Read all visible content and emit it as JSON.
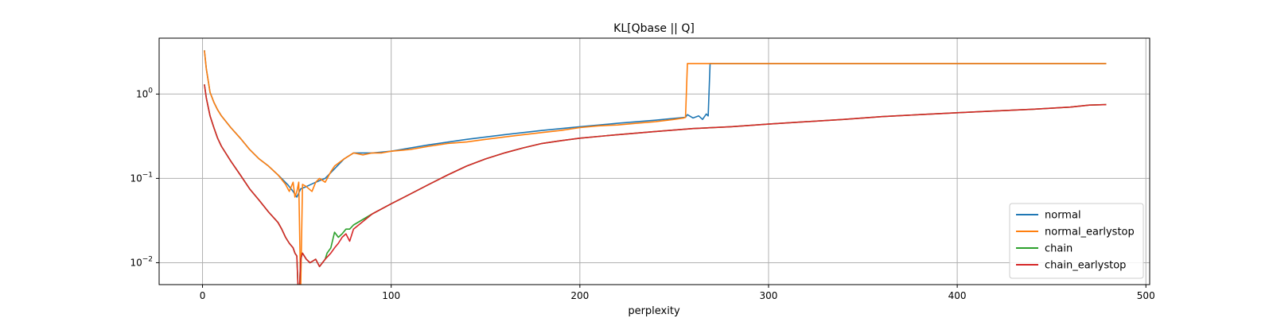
{
  "chart_data": {
    "type": "line",
    "title": "KL[Qbase || Q]",
    "xlabel": "perplexity",
    "ylabel": "",
    "xlim": [
      -23,
      502
    ],
    "ylim": [
      0.0055,
      4.6
    ],
    "yscale": "log",
    "grid": true,
    "legend_position": "lower-right",
    "x_ticks": [
      {
        "value": 0,
        "label": "0"
      },
      {
        "value": 100,
        "label": "100"
      },
      {
        "value": 200,
        "label": "200"
      },
      {
        "value": 300,
        "label": "300"
      },
      {
        "value": 400,
        "label": "400"
      },
      {
        "value": 500,
        "label": "500"
      }
    ],
    "y_ticks": [
      {
        "value": 0.01,
        "base": "10",
        "exp": "−2"
      },
      {
        "value": 0.1,
        "base": "10",
        "exp": "−1"
      },
      {
        "value": 1,
        "base": "10",
        "exp": "0"
      }
    ],
    "series": [
      {
        "name": "normal",
        "color": "#1f77b4",
        "x": [
          1,
          2,
          4,
          6,
          8,
          10,
          15,
          20,
          25,
          30,
          35,
          40,
          45,
          48,
          50,
          52,
          55,
          60,
          65,
          70,
          75,
          80,
          90,
          100,
          120,
          140,
          160,
          180,
          200,
          220,
          240,
          256,
          257,
          260,
          263,
          265,
          267,
          268,
          269,
          270,
          300,
          350,
          400,
          450,
          479
        ],
        "y": [
          3.3,
          2.0,
          1.05,
          0.8,
          0.65,
          0.55,
          0.4,
          0.3,
          0.22,
          0.17,
          0.14,
          0.11,
          0.085,
          0.07,
          0.06,
          0.075,
          0.08,
          0.09,
          0.1,
          0.13,
          0.17,
          0.2,
          0.2,
          0.21,
          0.25,
          0.29,
          0.33,
          0.37,
          0.41,
          0.45,
          0.49,
          0.53,
          0.57,
          0.52,
          0.55,
          0.5,
          0.58,
          0.55,
          2.3,
          2.3,
          2.3,
          2.3,
          2.3,
          2.3,
          2.3
        ]
      },
      {
        "name": "normal_earlystop",
        "color": "#ff7f0e",
        "x": [
          1,
          2,
          4,
          6,
          8,
          10,
          15,
          20,
          25,
          30,
          35,
          40,
          44,
          46,
          48,
          49,
          50,
          51,
          52,
          53,
          55,
          58,
          60,
          62,
          65,
          68,
          70,
          75,
          80,
          85,
          90,
          95,
          100,
          110,
          120,
          130,
          140,
          150,
          160,
          170,
          180,
          190,
          200,
          210,
          220,
          230,
          240,
          250,
          255,
          256,
          257,
          260,
          300,
          350,
          400,
          450,
          479
        ],
        "y": [
          3.3,
          2.0,
          1.05,
          0.8,
          0.65,
          0.55,
          0.4,
          0.3,
          0.22,
          0.17,
          0.14,
          0.11,
          0.085,
          0.07,
          0.09,
          0.06,
          0.07,
          0.09,
          0.0045,
          0.085,
          0.08,
          0.07,
          0.09,
          0.1,
          0.09,
          0.12,
          0.14,
          0.17,
          0.2,
          0.19,
          0.2,
          0.2,
          0.21,
          0.22,
          0.24,
          0.26,
          0.27,
          0.29,
          0.31,
          0.33,
          0.35,
          0.37,
          0.4,
          0.42,
          0.43,
          0.45,
          0.47,
          0.5,
          0.52,
          0.53,
          2.3,
          2.3,
          2.3,
          2.3,
          2.3,
          2.3,
          2.3
        ]
      },
      {
        "name": "chain",
        "color": "#2ca02c",
        "x": [
          1,
          2,
          4,
          6,
          8,
          10,
          15,
          20,
          25,
          30,
          35,
          40,
          42,
          44,
          46,
          48,
          49,
          50,
          51,
          52,
          53,
          55,
          57,
          60,
          62,
          65,
          66,
          68,
          70,
          72,
          74,
          76,
          78,
          80,
          90,
          100,
          110,
          120,
          130,
          140,
          150,
          160,
          170,
          180,
          190,
          200,
          220,
          240,
          260,
          280,
          300,
          320,
          340,
          360,
          380,
          400,
          420,
          440,
          460,
          470,
          479
        ],
        "y": [
          1.3,
          0.9,
          0.55,
          0.4,
          0.3,
          0.24,
          0.16,
          0.11,
          0.075,
          0.055,
          0.04,
          0.03,
          0.025,
          0.02,
          0.017,
          0.015,
          0.013,
          0.012,
          0.003,
          0.011,
          0.013,
          0.011,
          0.01,
          0.011,
          0.009,
          0.011,
          0.013,
          0.015,
          0.023,
          0.02,
          0.022,
          0.025,
          0.025,
          0.028,
          0.038,
          0.05,
          0.065,
          0.085,
          0.11,
          0.14,
          0.17,
          0.2,
          0.23,
          0.26,
          0.28,
          0.3,
          0.33,
          0.36,
          0.39,
          0.41,
          0.44,
          0.47,
          0.5,
          0.54,
          0.57,
          0.6,
          0.63,
          0.66,
          0.7,
          0.74,
          0.75
        ]
      },
      {
        "name": "chain_earlystop",
        "color": "#d62728",
        "x": [
          1,
          2,
          4,
          6,
          8,
          10,
          15,
          20,
          25,
          30,
          35,
          40,
          42,
          44,
          46,
          48,
          49,
          50,
          51,
          52,
          53,
          55,
          57,
          60,
          62,
          65,
          68,
          70,
          72,
          74,
          76,
          78,
          80,
          90,
          100,
          110,
          120,
          130,
          140,
          150,
          160,
          170,
          180,
          190,
          200,
          220,
          240,
          260,
          280,
          300,
          320,
          340,
          360,
          380,
          400,
          420,
          440,
          460,
          470,
          479
        ],
        "y": [
          1.3,
          0.9,
          0.55,
          0.4,
          0.3,
          0.24,
          0.16,
          0.11,
          0.075,
          0.055,
          0.04,
          0.03,
          0.025,
          0.02,
          0.017,
          0.015,
          0.013,
          0.012,
          0.003,
          0.011,
          0.013,
          0.011,
          0.01,
          0.011,
          0.009,
          0.011,
          0.013,
          0.015,
          0.017,
          0.02,
          0.022,
          0.018,
          0.025,
          0.038,
          0.05,
          0.065,
          0.085,
          0.11,
          0.14,
          0.17,
          0.2,
          0.23,
          0.26,
          0.28,
          0.3,
          0.33,
          0.36,
          0.39,
          0.41,
          0.44,
          0.47,
          0.5,
          0.54,
          0.57,
          0.6,
          0.63,
          0.66,
          0.7,
          0.74,
          0.75
        ]
      }
    ]
  }
}
